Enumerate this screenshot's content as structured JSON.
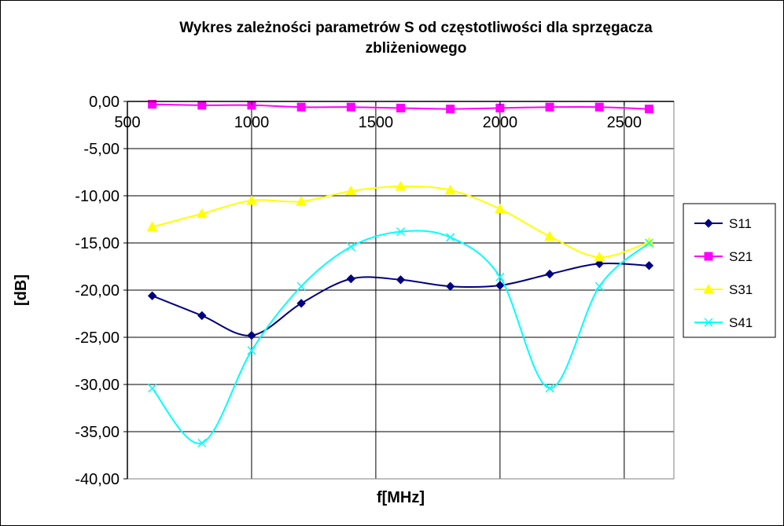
{
  "chart_data": {
    "type": "line",
    "title_lines": [
      "Wykres zależności parametrów S od częstotliwości dla sprzęgacza",
      "zbliżeniowego"
    ],
    "xlabel": "f[MHz]",
    "ylabel": "[dB]",
    "xlim": [
      500,
      2700
    ],
    "ylim": [
      -40,
      0
    ],
    "x_ticks": [
      500,
      1000,
      1500,
      2000,
      2500
    ],
    "x_tick_labels": [
      "500",
      "1000",
      "1500",
      "2000",
      "2500"
    ],
    "y_ticks": [
      0,
      -5,
      -10,
      -15,
      -20,
      -25,
      -30,
      -35,
      -40
    ],
    "y_tick_labels": [
      "0,00",
      "-5,00",
      "-10,00",
      "-15,00",
      "-20,00",
      "-25,00",
      "-30,00",
      "-35,00",
      "-40,00"
    ],
    "grid": "vertical-and-horizontal",
    "legend_position": "right",
    "x": [
      600,
      800,
      1000,
      1200,
      1400,
      1600,
      1800,
      2000,
      2200,
      2400,
      2600
    ],
    "series": [
      {
        "name": "S11",
        "color": "#000080",
        "marker": "diamond",
        "values": [
          -20.6,
          -22.7,
          -24.8,
          -21.4,
          -18.8,
          -18.9,
          -19.6,
          -19.5,
          -18.3,
          -17.2,
          -17.4
        ]
      },
      {
        "name": "S21",
        "color": "#ff00ff",
        "marker": "square",
        "values": [
          -0.3,
          -0.4,
          -0.4,
          -0.6,
          -0.6,
          -0.7,
          -0.8,
          -0.7,
          -0.6,
          -0.6,
          -0.8
        ]
      },
      {
        "name": "S31",
        "color": "#ffff00",
        "marker": "triangle",
        "values": [
          -13.3,
          -11.9,
          -10.5,
          -10.6,
          -9.5,
          -9.0,
          -9.4,
          -11.4,
          -14.3,
          -16.5,
          -14.9
        ]
      },
      {
        "name": "S41",
        "color": "#00ffff",
        "marker": "x",
        "values": [
          -30.4,
          -36.2,
          -26.4,
          -19.6,
          -15.4,
          -13.8,
          -14.4,
          -18.6,
          -30.4,
          -19.6,
          -15.0
        ]
      }
    ]
  }
}
